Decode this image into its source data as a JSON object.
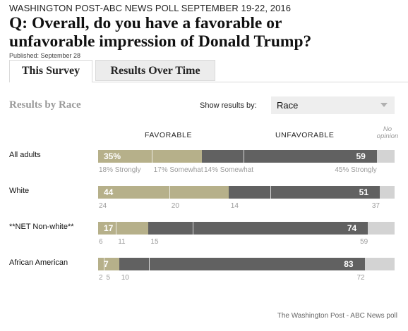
{
  "header": {
    "kicker": "WASHINGTON POST-ABC NEWS POLL SEPTEMBER 19-22, 2016",
    "question_line1": "Q: Overall, do you have a favorable or",
    "question_line2": "unfavorable impression of Donald Trump?",
    "published": "Published: September 28"
  },
  "tabs": [
    {
      "label": "This Survey",
      "active": true
    },
    {
      "label": "Results Over Time",
      "active": false
    }
  ],
  "panel": {
    "title": "Results by Race",
    "show_label": "Show results by:",
    "select_value": "Race"
  },
  "columns": {
    "favorable": "FAVORABLE",
    "unfavorable": "UNFAVORABLE",
    "no_opinion_line1": "No",
    "no_opinion_line2": "opinion"
  },
  "colors": {
    "favorable": "#b6b08a",
    "unfavorable": "#616161",
    "no_opinion": "#d3d3d3"
  },
  "rows": [
    {
      "label": "All adults",
      "favorable": "35%",
      "unfavorable": "59",
      "fav_parts": [
        18,
        17
      ],
      "unf_parts": [
        14,
        45
      ],
      "fav_sub": [
        "18% Strongly",
        "17% Somewhat"
      ],
      "unf_sub": [
        "14% Somewhat",
        "45% Strongly"
      ],
      "no_opinion": 6
    },
    {
      "label": "White",
      "favorable": "44",
      "unfavorable": "51",
      "fav_parts": [
        24,
        20
      ],
      "unf_parts": [
        14,
        37
      ],
      "fav_sub": [
        "24",
        "20"
      ],
      "unf_sub": [
        "14",
        "37"
      ],
      "no_opinion": 5
    },
    {
      "label": "**NET Non-white**",
      "favorable": "17",
      "unfavorable": "74",
      "fav_parts": [
        6,
        11
      ],
      "unf_parts": [
        15,
        59
      ],
      "fav_sub": [
        "6",
        "11"
      ],
      "unf_sub": [
        "15",
        "59"
      ],
      "no_opinion": 9
    },
    {
      "label": "African American",
      "favorable": "7",
      "unfavorable": "83",
      "fav_parts": [
        2,
        5
      ],
      "unf_parts": [
        10,
        72
      ],
      "fav_sub": [
        "2",
        "5"
      ],
      "unf_sub": [
        "10",
        "72"
      ],
      "no_opinion": 10
    }
  ],
  "footer": {
    "credit": "The Washington Post - ABC News poll"
  }
}
